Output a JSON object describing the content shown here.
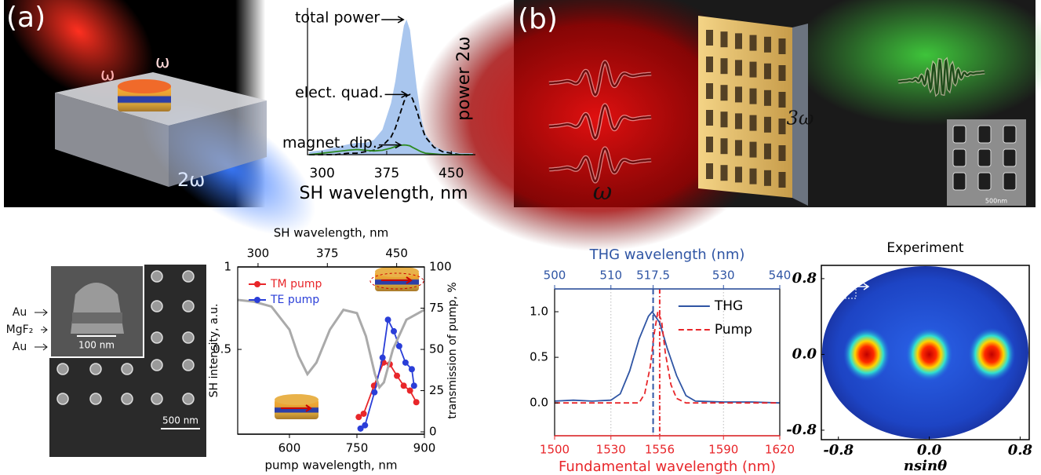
{
  "panels": {
    "a": "(a)",
    "b": "(b)"
  },
  "illustration_a": {
    "omega_in": "ω",
    "omega_reflected": "ω",
    "omega_sh": "2ω"
  },
  "illustration_b": {
    "omega": "ω",
    "omega_th": "3ω",
    "inset_scale": "500nm"
  },
  "sem_a": {
    "layers": [
      "Au",
      "MgF₂",
      "Au"
    ],
    "inset_scale": "100 nm",
    "scale": "500 nm"
  },
  "chart_data": [
    {
      "type": "area",
      "x_label": "SH wavelength, nm",
      "y_label": "power 2ω",
      "x": [
        285,
        300,
        315,
        330,
        340,
        350,
        360,
        370,
        380,
        385,
        390,
        395,
        398,
        402,
        405,
        410,
        415,
        420,
        430,
        440,
        450,
        460,
        475
      ],
      "xlim": [
        283,
        478
      ],
      "ylim": [
        0,
        1
      ],
      "xticks": [
        300,
        375,
        450
      ],
      "series": [
        {
          "name": "total power",
          "color": "#a9c6ee",
          "style": "area",
          "values": [
            0.02,
            0.03,
            0.05,
            0.07,
            0.08,
            0.08,
            0.1,
            0.17,
            0.35,
            0.5,
            0.7,
            0.88,
            0.92,
            0.85,
            0.7,
            0.45,
            0.25,
            0.14,
            0.06,
            0.03,
            0.02,
            0.01,
            0.01
          ]
        },
        {
          "name": "elect. quad.",
          "color": "#000000",
          "style": "dashed",
          "values": [
            0,
            0,
            0,
            0.01,
            0.01,
            0.02,
            0.03,
            0.06,
            0.12,
            0.18,
            0.27,
            0.36,
            0.4,
            0.41,
            0.38,
            0.3,
            0.2,
            0.12,
            0.05,
            0.02,
            0.01,
            0,
            0
          ]
        },
        {
          "name": "magnet. dip.",
          "color": "#2e8b22",
          "style": "solid",
          "values": [
            0,
            0.01,
            0.02,
            0.03,
            0.035,
            0.03,
            0.025,
            0.03,
            0.045,
            0.055,
            0.063,
            0.066,
            0.065,
            0.06,
            0.05,
            0.035,
            0.02,
            0.01,
            0.005,
            0,
            0,
            0,
            0
          ]
        }
      ]
    },
    {
      "type": "line",
      "x_label": "pump wavelength, nm",
      "x2_label": "SH wavelength, nm",
      "y_label": "SH intensity, a.u.",
      "y2_label": "transmission of pump, %",
      "xlim": [
        485,
        900
      ],
      "xticks": [
        600,
        750,
        900
      ],
      "x2lim": [
        278,
        480
      ],
      "x2ticks": [
        300,
        375,
        450
      ],
      "ylim": [
        -0.014,
        1
      ],
      "yticks": [
        0.5,
        1
      ],
      "y2lim": [
        -1.4,
        100
      ],
      "y2ticks": [
        0,
        25,
        50,
        75,
        100
      ],
      "legend": "upper left",
      "series": [
        {
          "name": "TM pump",
          "color": "#e8262a",
          "markers": true,
          "x": [
            754,
            765,
            788,
            809,
            823,
            839,
            854,
            868,
            882
          ],
          "values": [
            0.09,
            0.11,
            0.28,
            0.42,
            0.41,
            0.34,
            0.28,
            0.25,
            0.18
          ]
        },
        {
          "name": "TE pump",
          "color": "#2a3ed8",
          "markers": true,
          "x": [
            758,
            768,
            789,
            807,
            819,
            832,
            844,
            858,
            872,
            877
          ],
          "values": [
            0.02,
            0.04,
            0.24,
            0.45,
            0.68,
            0.61,
            0.52,
            0.42,
            0.38,
            0.28
          ]
        },
        {
          "color": "#aaaaaa",
          "axis": "y2",
          "markers": false,
          "x": [
            485,
            520,
            560,
            600,
            620,
            640,
            660,
            690,
            720,
            750,
            770,
            790,
            800,
            810,
            830,
            860,
            900
          ],
          "values": [
            80,
            79,
            76,
            62,
            46,
            35,
            42,
            62,
            74,
            72,
            58,
            35,
            27,
            30,
            50,
            68,
            74
          ]
        }
      ]
    },
    {
      "type": "line",
      "x_label": "Fundamental wavelength (nm)",
      "x2_label": "THG wavelength (nm)",
      "x_color": "#e8262a",
      "x2_color": "#2f55a4",
      "xlim": [
        1500,
        1620
      ],
      "xticks": [
        1500,
        1530,
        1556,
        1590,
        1620
      ],
      "x2lim": [
        500,
        540
      ],
      "x2ticks": [
        500,
        510,
        517.5,
        530,
        540
      ],
      "ylim": [
        -0.36,
        1.25
      ],
      "yticks": [
        {
          "value": 0,
          "label": "0.0"
        },
        {
          "value": 0.5,
          "label": "0.5"
        },
        {
          "value": 1,
          "label": "1.0"
        }
      ],
      "grid": true,
      "legend": "upper right",
      "vlines": [
        {
          "axis": "x2",
          "value": 517.5,
          "color": "#2f55a4",
          "style": "dashed"
        },
        {
          "axis": "x",
          "value": 1556,
          "color": "#e8262a",
          "style": "dashdot"
        }
      ],
      "series": [
        {
          "name": "THG",
          "color": "#2f55a4",
          "style": "solid",
          "x": [
            1500,
            1510,
            1520,
            1530,
            1535,
            1540,
            1545,
            1550,
            1552,
            1556,
            1560,
            1565,
            1570,
            1575,
            1590,
            1605,
            1620
          ],
          "values": [
            0.02,
            0.03,
            0.02,
            0.03,
            0.1,
            0.35,
            0.7,
            0.95,
            1.0,
            0.88,
            0.6,
            0.3,
            0.08,
            0.02,
            0.01,
            0.01,
            0
          ]
        },
        {
          "name": "Pump",
          "color": "#e8262a",
          "style": "dashed",
          "x": [
            1500,
            1530,
            1545,
            1548,
            1551,
            1553,
            1555,
            1557,
            1559,
            1562,
            1565,
            1570,
            1620
          ],
          "values": [
            0,
            0,
            0,
            0.1,
            0.4,
            0.75,
            1.0,
            0.9,
            0.55,
            0.2,
            0.05,
            0,
            0
          ]
        }
      ]
    },
    {
      "type": "heatmap",
      "title": "Experiment",
      "x_label": "nsinθ",
      "xlim": [
        -0.95,
        0.88
      ],
      "ylim": [
        -0.9,
        0.94
      ],
      "xticks": [
        -0.8,
        {
          "value": 0,
          "label": "0.0"
        },
        0.8
      ],
      "yticks": [
        0.8,
        {
          "value": 0,
          "label": "0.0"
        },
        -0.8
      ],
      "spots": {
        "x": [
          -0.55,
          0,
          0.55
        ],
        "y": [
          0,
          0,
          0
        ]
      }
    }
  ]
}
